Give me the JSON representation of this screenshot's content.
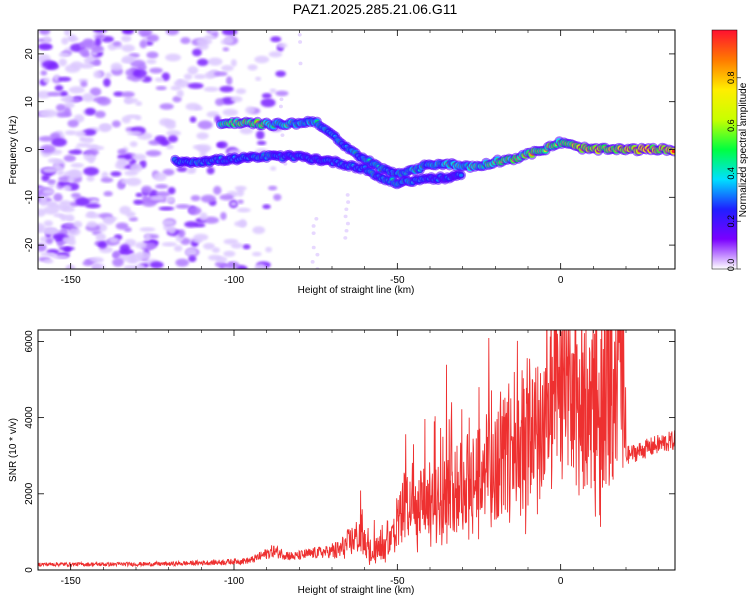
{
  "title": "PAZ1.2025.285.21.06.G11",
  "chart_data": [
    {
      "type": "heatmap",
      "name": "spectrogram",
      "xlabel": "Height of straight line (km)",
      "ylabel": "Frequency (Hz)",
      "xlim": [
        -160,
        35
      ],
      "ylim": [
        -25,
        25
      ],
      "xticks": [
        -150,
        -100,
        -50,
        0
      ],
      "yticks": [
        -20,
        -10,
        0,
        10,
        20
      ],
      "colorbar": {
        "label": "Normalized spectral amplitude",
        "range": [
          0,
          1
        ],
        "ticks": [
          "0.0",
          "0.2",
          "0.4",
          "0.6",
          "0.8"
        ],
        "colors": [
          "#ffffff",
          "#7a00ff",
          "#1f1fff",
          "#00e0ff",
          "#00ff40",
          "#c8ff00",
          "#ffee00",
          "#ff7a00",
          "#ff1030"
        ]
      },
      "tracks": [
        {
          "name": "upper branch",
          "points": [
            [
              -104,
              5.5
            ],
            [
              -95,
              5.5
            ],
            [
              -88,
              5.2
            ],
            [
              -80,
              5.5
            ],
            [
              -75,
              6
            ],
            [
              -70,
              3
            ],
            [
              -65,
              0
            ],
            [
              -60,
              -2
            ],
            [
              -55,
              -4
            ],
            [
              -50,
              -5
            ],
            [
              -45,
              -4.5
            ],
            [
              -40,
              -3
            ],
            [
              -35,
              -3
            ],
            [
              -30,
              -3.5
            ],
            [
              -25,
              -3.5
            ],
            [
              -20,
              -2.5
            ],
            [
              -15,
              -2
            ],
            [
              -10,
              -1
            ],
            [
              -5,
              0
            ],
            [
              0,
              1.5
            ],
            [
              5,
              0.5
            ],
            [
              10,
              0
            ],
            [
              20,
              0
            ],
            [
              35,
              0
            ]
          ],
          "amplitude": [
            0.55,
            0.7,
            0.5,
            0.45,
            0.4,
            0.35,
            0.35,
            0.4,
            0.4,
            0.35,
            0.4,
            0.4,
            0.45,
            0.45,
            0.5,
            0.55,
            0.6,
            0.65,
            0.7,
            0.6,
            0.75,
            0.8,
            0.85,
            0.85
          ]
        },
        {
          "name": "lower branch",
          "points": [
            [
              -118,
              -2.5
            ],
            [
              -110,
              -2.5
            ],
            [
              -100,
              -2
            ],
            [
              -90,
              -1.5
            ],
            [
              -80,
              -1.5
            ],
            [
              -70,
              -2.5
            ],
            [
              -60,
              -4
            ],
            [
              -55,
              -6
            ],
            [
              -50,
              -7
            ],
            [
              -45,
              -6.5
            ],
            [
              -40,
              -6
            ],
            [
              -35,
              -6
            ],
            [
              -30,
              -5.5
            ]
          ],
          "amplitude": [
            0.35,
            0.35,
            0.3,
            0.35,
            0.3,
            0.3,
            0.35,
            0.35,
            0.4,
            0.35,
            0.3,
            0.3,
            0.3
          ]
        }
      ]
    },
    {
      "type": "line",
      "name": "snr",
      "xlabel": "Height of straight line (km)",
      "ylabel": "SNR (10 * v/v)",
      "xlim": [
        -160,
        35
      ],
      "ylim": [
        0,
        6300
      ],
      "xticks": [
        -150,
        -100,
        -50,
        0
      ],
      "yticks": [
        0,
        2000,
        4000,
        6000
      ],
      "color": "#ee3030",
      "envelope": [
        [
          -160,
          150
        ],
        [
          -140,
          150
        ],
        [
          -120,
          160
        ],
        [
          -105,
          200
        ],
        [
          -95,
          250
        ],
        [
          -88,
          500
        ],
        [
          -82,
          350
        ],
        [
          -75,
          450
        ],
        [
          -68,
          500
        ],
        [
          -65,
          700
        ],
        [
          -62,
          900
        ],
        [
          -58,
          500
        ],
        [
          -52,
          700
        ],
        [
          -47,
          1800
        ],
        [
          -45,
          1400
        ],
        [
          -42,
          1900
        ],
        [
          -38,
          1800
        ],
        [
          -35,
          2100
        ],
        [
          -32,
          2200
        ],
        [
          -29,
          2400
        ],
        [
          -26,
          2600
        ],
        [
          -23,
          2700
        ],
        [
          -20,
          2800
        ],
        [
          -17,
          3100
        ],
        [
          -14,
          3400
        ],
        [
          -10,
          3600
        ],
        [
          -6,
          3900
        ],
        [
          -3,
          4000
        ],
        [
          -1,
          4600
        ],
        [
          0,
          4300
        ],
        [
          3,
          4300
        ],
        [
          6,
          4100
        ],
        [
          9,
          4500
        ],
        [
          12,
          4700
        ],
        [
          15,
          4900
        ],
        [
          19,
          5000
        ],
        [
          20,
          3000
        ],
        [
          25,
          3150
        ],
        [
          30,
          3300
        ],
        [
          35,
          3400
        ]
      ],
      "peaks": [
        [
          -60,
          1050
        ],
        [
          -50,
          1600
        ],
        [
          -45,
          3300
        ],
        [
          -36,
          3500
        ],
        [
          -28,
          4000
        ],
        [
          -25,
          4800
        ],
        [
          -20,
          3600
        ],
        [
          -12,
          3900
        ],
        [
          -1,
          6200
        ],
        [
          2,
          5100
        ],
        [
          9,
          5700
        ],
        [
          13,
          5800
        ],
        [
          17,
          5600
        ]
      ]
    }
  ]
}
